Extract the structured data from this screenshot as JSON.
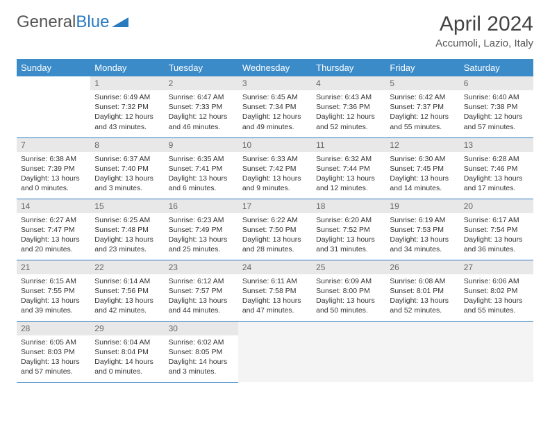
{
  "logo": {
    "text1": "General",
    "text2": "Blue"
  },
  "title": "April 2024",
  "location": "Accumoli, Lazio, Italy",
  "colors": {
    "header_bg": "#3b8bc9",
    "header_text": "#ffffff",
    "border": "#2a7ac0",
    "daynum_bg": "#e8e8e8",
    "daynum_text": "#666666",
    "body_text": "#333333",
    "logo_gray": "#555555",
    "logo_blue": "#2a7ac0"
  },
  "weekdays": [
    "Sunday",
    "Monday",
    "Tuesday",
    "Wednesday",
    "Thursday",
    "Friday",
    "Saturday"
  ],
  "weeks": [
    [
      null,
      {
        "n": "1",
        "sr": "Sunrise: 6:49 AM",
        "ss": "Sunset: 7:32 PM",
        "dl": "Daylight: 12 hours and 43 minutes."
      },
      {
        "n": "2",
        "sr": "Sunrise: 6:47 AM",
        "ss": "Sunset: 7:33 PM",
        "dl": "Daylight: 12 hours and 46 minutes."
      },
      {
        "n": "3",
        "sr": "Sunrise: 6:45 AM",
        "ss": "Sunset: 7:34 PM",
        "dl": "Daylight: 12 hours and 49 minutes."
      },
      {
        "n": "4",
        "sr": "Sunrise: 6:43 AM",
        "ss": "Sunset: 7:36 PM",
        "dl": "Daylight: 12 hours and 52 minutes."
      },
      {
        "n": "5",
        "sr": "Sunrise: 6:42 AM",
        "ss": "Sunset: 7:37 PM",
        "dl": "Daylight: 12 hours and 55 minutes."
      },
      {
        "n": "6",
        "sr": "Sunrise: 6:40 AM",
        "ss": "Sunset: 7:38 PM",
        "dl": "Daylight: 12 hours and 57 minutes."
      }
    ],
    [
      {
        "n": "7",
        "sr": "Sunrise: 6:38 AM",
        "ss": "Sunset: 7:39 PM",
        "dl": "Daylight: 13 hours and 0 minutes."
      },
      {
        "n": "8",
        "sr": "Sunrise: 6:37 AM",
        "ss": "Sunset: 7:40 PM",
        "dl": "Daylight: 13 hours and 3 minutes."
      },
      {
        "n": "9",
        "sr": "Sunrise: 6:35 AM",
        "ss": "Sunset: 7:41 PM",
        "dl": "Daylight: 13 hours and 6 minutes."
      },
      {
        "n": "10",
        "sr": "Sunrise: 6:33 AM",
        "ss": "Sunset: 7:42 PM",
        "dl": "Daylight: 13 hours and 9 minutes."
      },
      {
        "n": "11",
        "sr": "Sunrise: 6:32 AM",
        "ss": "Sunset: 7:44 PM",
        "dl": "Daylight: 13 hours and 12 minutes."
      },
      {
        "n": "12",
        "sr": "Sunrise: 6:30 AM",
        "ss": "Sunset: 7:45 PM",
        "dl": "Daylight: 13 hours and 14 minutes."
      },
      {
        "n": "13",
        "sr": "Sunrise: 6:28 AM",
        "ss": "Sunset: 7:46 PM",
        "dl": "Daylight: 13 hours and 17 minutes."
      }
    ],
    [
      {
        "n": "14",
        "sr": "Sunrise: 6:27 AM",
        "ss": "Sunset: 7:47 PM",
        "dl": "Daylight: 13 hours and 20 minutes."
      },
      {
        "n": "15",
        "sr": "Sunrise: 6:25 AM",
        "ss": "Sunset: 7:48 PM",
        "dl": "Daylight: 13 hours and 23 minutes."
      },
      {
        "n": "16",
        "sr": "Sunrise: 6:23 AM",
        "ss": "Sunset: 7:49 PM",
        "dl": "Daylight: 13 hours and 25 minutes."
      },
      {
        "n": "17",
        "sr": "Sunrise: 6:22 AM",
        "ss": "Sunset: 7:50 PM",
        "dl": "Daylight: 13 hours and 28 minutes."
      },
      {
        "n": "18",
        "sr": "Sunrise: 6:20 AM",
        "ss": "Sunset: 7:52 PM",
        "dl": "Daylight: 13 hours and 31 minutes."
      },
      {
        "n": "19",
        "sr": "Sunrise: 6:19 AM",
        "ss": "Sunset: 7:53 PM",
        "dl": "Daylight: 13 hours and 34 minutes."
      },
      {
        "n": "20",
        "sr": "Sunrise: 6:17 AM",
        "ss": "Sunset: 7:54 PM",
        "dl": "Daylight: 13 hours and 36 minutes."
      }
    ],
    [
      {
        "n": "21",
        "sr": "Sunrise: 6:15 AM",
        "ss": "Sunset: 7:55 PM",
        "dl": "Daylight: 13 hours and 39 minutes."
      },
      {
        "n": "22",
        "sr": "Sunrise: 6:14 AM",
        "ss": "Sunset: 7:56 PM",
        "dl": "Daylight: 13 hours and 42 minutes."
      },
      {
        "n": "23",
        "sr": "Sunrise: 6:12 AM",
        "ss": "Sunset: 7:57 PM",
        "dl": "Daylight: 13 hours and 44 minutes."
      },
      {
        "n": "24",
        "sr": "Sunrise: 6:11 AM",
        "ss": "Sunset: 7:58 PM",
        "dl": "Daylight: 13 hours and 47 minutes."
      },
      {
        "n": "25",
        "sr": "Sunrise: 6:09 AM",
        "ss": "Sunset: 8:00 PM",
        "dl": "Daylight: 13 hours and 50 minutes."
      },
      {
        "n": "26",
        "sr": "Sunrise: 6:08 AM",
        "ss": "Sunset: 8:01 PM",
        "dl": "Daylight: 13 hours and 52 minutes."
      },
      {
        "n": "27",
        "sr": "Sunrise: 6:06 AM",
        "ss": "Sunset: 8:02 PM",
        "dl": "Daylight: 13 hours and 55 minutes."
      }
    ],
    [
      {
        "n": "28",
        "sr": "Sunrise: 6:05 AM",
        "ss": "Sunset: 8:03 PM",
        "dl": "Daylight: 13 hours and 57 minutes."
      },
      {
        "n": "29",
        "sr": "Sunrise: 6:04 AM",
        "ss": "Sunset: 8:04 PM",
        "dl": "Daylight: 14 hours and 0 minutes."
      },
      {
        "n": "30",
        "sr": "Sunrise: 6:02 AM",
        "ss": "Sunset: 8:05 PM",
        "dl": "Daylight: 14 hours and 3 minutes."
      },
      "trail",
      "trail",
      "trail",
      "trail"
    ]
  ]
}
